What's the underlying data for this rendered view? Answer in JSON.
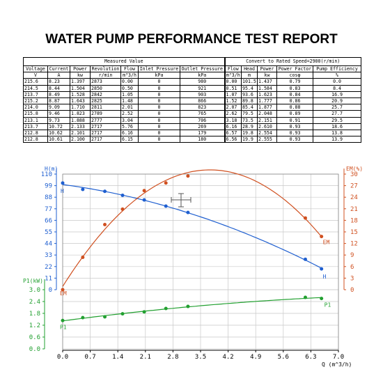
{
  "title": "WATER PUMP PERFORMANCE TEST REPORT",
  "table": {
    "group_measured": "Measured Value",
    "group_converted": "Convert to Rated Speed=2900(r/min)",
    "headers": [
      "Voltage",
      "Current",
      "Power",
      "Revolution",
      "Flow",
      "Inlet Pressure",
      "Outlet Pressure",
      "Flow",
      "Head",
      "Power",
      "Power Factor",
      "Pump Efficiency"
    ],
    "units": [
      "V",
      "A",
      "kw",
      "r/min",
      "m³3/h",
      "kPa",
      "kPa",
      "m³3/h",
      "m",
      "kw",
      "cosφ",
      "%"
    ],
    "rows": [
      [
        "215.6",
        "8.23",
        "1.397",
        "2873",
        "0.00",
        "0",
        "980",
        "0.00",
        "101.5",
        "1.437",
        "0.79",
        "0.0"
      ],
      [
        "214.5",
        "8.44",
        "1.504",
        "2850",
        "0.50",
        "0",
        "921",
        "0.51",
        "95.4",
        "1.584",
        "0.83",
        "8.4"
      ],
      [
        "213.7",
        "8.49",
        "1.528",
        "2842",
        "1.05",
        "0",
        "903",
        "1.07",
        "93.6",
        "1.623",
        "0.84",
        "16.9"
      ],
      [
        "215.2",
        "8.87",
        "1.643",
        "2825",
        "1.48",
        "0",
        "866",
        "1.52",
        "89.8",
        "1.777",
        "0.86",
        "20.9"
      ],
      [
        "214.0",
        "9.09",
        "1.710",
        "2811",
        "2.01",
        "0",
        "823",
        "2.07",
        "85.4",
        "1.877",
        "0.88",
        "25.7"
      ],
      [
        "215.8",
        "9.46",
        "1.823",
        "2789",
        "2.52",
        "0",
        "765",
        "2.62",
        "79.5",
        "2.048",
        "0.89",
        "27.7"
      ],
      [
        "213.1",
        "9.73",
        "1.888",
        "2777",
        "3.04",
        "0",
        "706",
        "3.18",
        "73.5",
        "2.151",
        "0.91",
        "29.5"
      ],
      [
        "213.7",
        "10.72",
        "2.133",
        "2717",
        "5.76",
        "0",
        "269",
        "6.16",
        "28.9",
        "2.610",
        "0.93",
        "18.6"
      ],
      [
        "212.8",
        "10.62",
        "2.101",
        "2717",
        "6.16",
        "0",
        "179",
        "6.57",
        "19.8",
        "2.554",
        "0.93",
        "13.8"
      ],
      [
        "212.8",
        "10.61",
        "2.100",
        "2717",
        "6.15",
        "0",
        "180",
        "6.56",
        "19.9",
        "2.555",
        "0.93",
        "13.9"
      ]
    ]
  },
  "chart_data": {
    "type": "line",
    "xlabel": "Q (m^3/h)",
    "xlim": [
      0,
      7.0
    ],
    "xticks": [
      "0.0",
      "0.7",
      "1.4",
      "2.1",
      "2.8",
      "3.5",
      "4.2",
      "4.9",
      "5.6",
      "6.3",
      "7.0"
    ],
    "y_head": {
      "label": "H(m)",
      "ticks": [
        "0",
        "11",
        "22",
        "33",
        "44",
        "55",
        "66",
        "77",
        "88",
        "99",
        "110"
      ],
      "ylim": [
        0,
        110
      ]
    },
    "y_eff": {
      "label": "EM(%)",
      "ticks": [
        "0",
        "3",
        "6",
        "9",
        "12",
        "15",
        "18",
        "21",
        "24",
        "27",
        "30"
      ],
      "ylim": [
        0,
        30
      ]
    },
    "y_power": {
      "label": "P1(kW)",
      "ticks": [
        "0.0",
        "0.6",
        "1.2",
        "1.8",
        "2.4",
        "3.0"
      ],
      "ylim": [
        0,
        3.0
      ]
    },
    "grid": true,
    "colors": {
      "head": "#1f5fd0",
      "efficiency": "#d05020",
      "power": "#22a030",
      "grid": "#c8c8c8"
    },
    "series": [
      {
        "name": "H",
        "axis": "head",
        "x": [
          0.0,
          0.51,
          1.07,
          1.52,
          2.07,
          2.62,
          3.18,
          6.16,
          6.57
        ],
        "y": [
          101.5,
          95.4,
          93.6,
          89.8,
          85.4,
          79.5,
          73.5,
          28.9,
          19.8
        ]
      },
      {
        "name": "EM",
        "axis": "efficiency",
        "x": [
          0.0,
          0.51,
          1.07,
          1.52,
          2.07,
          2.62,
          3.18,
          6.16,
          6.57
        ],
        "y": [
          0.0,
          8.4,
          16.9,
          20.9,
          25.7,
          27.7,
          29.5,
          18.6,
          13.8
        ]
      },
      {
        "name": "P1",
        "axis": "power",
        "x": [
          0.0,
          0.51,
          1.07,
          1.52,
          2.07,
          2.62,
          3.18,
          6.16,
          6.57
        ],
        "y": [
          1.437,
          1.584,
          1.623,
          1.777,
          1.877,
          2.048,
          2.151,
          2.61,
          2.554
        ]
      }
    ]
  }
}
